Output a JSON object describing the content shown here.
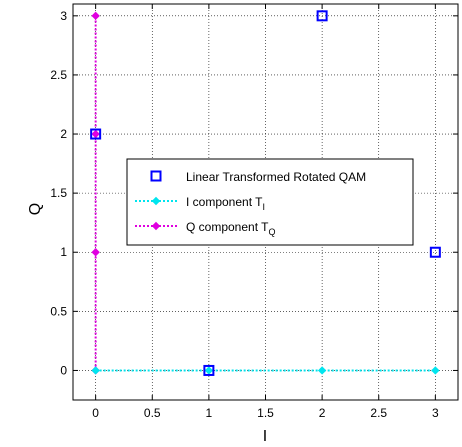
{
  "chart_data": {
    "type": "scatter",
    "title": "",
    "xlabel": "I",
    "ylabel": "Q",
    "xlim": [
      -0.2,
      3.2
    ],
    "ylim": [
      -0.25,
      3.1
    ],
    "xticks": [
      "0",
      "0.5",
      "1",
      "1.5",
      "2",
      "2.5",
      "3"
    ],
    "xtick_values": [
      0,
      0.5,
      1,
      1.5,
      2,
      2.5,
      3
    ],
    "yticks": [
      "0",
      "0.5",
      "1",
      "1.5",
      "2",
      "2.5",
      "3"
    ],
    "ytick_values": [
      0,
      0.5,
      1,
      1.5,
      2,
      2.5,
      3
    ],
    "grid": true,
    "legend_position": "center",
    "series": [
      {
        "name": "Linear Transformed Rotated QAM",
        "style": "square-marker",
        "color": "#0000ff",
        "x": [
          0,
          1,
          2,
          3
        ],
        "y": [
          2,
          0,
          3,
          1
        ]
      },
      {
        "name": "I component T",
        "name_subscript": "I",
        "style": "dotted-line-diamond",
        "color": "#00e5ee",
        "x": [
          0,
          1,
          2,
          3
        ],
        "y": [
          0,
          0,
          0,
          0
        ]
      },
      {
        "name": "Q component T",
        "name_subscript": "Q",
        "style": "dotted-line-diamond",
        "color": "#e000e0",
        "x": [
          0,
          0,
          0,
          0
        ],
        "y": [
          0,
          1,
          2,
          3
        ]
      }
    ]
  }
}
